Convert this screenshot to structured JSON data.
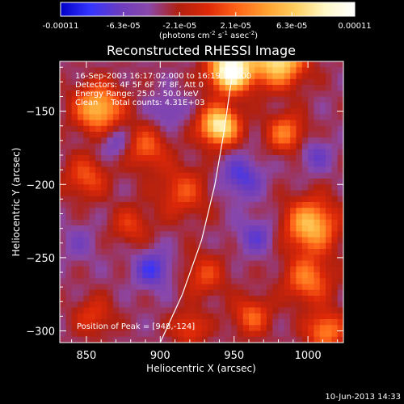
{
  "colorbar": {
    "tick_labels": [
      "-0.00011",
      "-6.3e-05",
      "-2.1e-05",
      "2.1e-05",
      "6.3e-05",
      "0.00011"
    ],
    "tick_values": [
      -0.00011,
      -6.3e-05,
      -2.1e-05,
      2.1e-05,
      6.3e-05,
      0.00011
    ],
    "range": [
      -0.00011,
      0.00011
    ],
    "unit_label_parts": [
      "(photons cm",
      "-2",
      " s",
      "-1",
      " asec",
      "-2",
      ")"
    ],
    "colormap": [
      "#0000c8",
      "#3434ff",
      "#6a3cc0",
      "#8a48aa",
      "#b02010",
      "#dd2808",
      "#ff6418",
      "#ffa030",
      "#ffd060",
      "#fff8c8",
      "#ffffff"
    ]
  },
  "chart_data": {
    "type": "heatmap",
    "title": "Reconstructed RHESSI Image",
    "xlabel": "Heliocentric X (arcsec)",
    "ylabel": "Heliocentric Y (arcsec)",
    "xlim": [
      832,
      1024
    ],
    "ylim": [
      -308,
      -116
    ],
    "x_ticks": [
      850,
      900,
      950,
      1000
    ],
    "y_ticks": [
      -300,
      -250,
      -200,
      -150
    ],
    "x_tick_labels": [
      "850",
      "900",
      "950",
      "1000"
    ],
    "y_tick_labels": [
      "−300",
      "−250",
      "−200",
      "−150"
    ],
    "annotations": [
      "16-Sep-2003 16:17:02.000 to 16:19:02.000",
      "Detectors: 4F 5F 6F 7F 8F, Att 0",
      "Energy Range: 25.0 - 50.0 keV",
      "Clean     Total counts: 4.31E+03"
    ],
    "peak_label": "Position of Peak = [948,-124]",
    "peak_position": [
      948,
      -124
    ],
    "limb_curve": [
      [
        900,
        -308
      ],
      [
        915,
        -275
      ],
      [
        928,
        -238
      ],
      [
        937,
        -200
      ],
      [
        943,
        -165
      ],
      [
        948,
        -130
      ],
      [
        951,
        -116
      ]
    ],
    "sources": [
      {
        "x": 948,
        "y": -122,
        "amp": 1.0,
        "sigma": 10
      },
      {
        "x": 940,
        "y": -160,
        "amp": 0.82,
        "sigma": 9
      },
      {
        "x": 980,
        "y": -115,
        "amp": 0.75,
        "sigma": 12
      },
      {
        "x": 858,
        "y": -148,
        "amp": 0.62,
        "sigma": 11
      },
      {
        "x": 1002,
        "y": -228,
        "amp": 0.62,
        "sigma": 12
      },
      {
        "x": 985,
        "y": -165,
        "amp": 0.42,
        "sigma": 9
      },
      {
        "x": 915,
        "y": -205,
        "amp": 0.3,
        "sigma": 12
      },
      {
        "x": 890,
        "y": -175,
        "amp": 0.35,
        "sigma": 10
      },
      {
        "x": 850,
        "y": -195,
        "amp": 0.32,
        "sigma": 10
      },
      {
        "x": 1000,
        "y": -265,
        "amp": 0.42,
        "sigma": 11
      },
      {
        "x": 930,
        "y": -262,
        "amp": 0.28,
        "sigma": 10
      },
      {
        "x": 880,
        "y": -228,
        "amp": 0.25,
        "sigma": 9
      },
      {
        "x": 962,
        "y": -290,
        "amp": 0.35,
        "sigma": 9
      },
      {
        "x": 920,
        "y": -298,
        "amp": 0.3,
        "sigma": 8
      },
      {
        "x": 855,
        "y": -290,
        "amp": 0.25,
        "sigma": 9
      },
      {
        "x": 1012,
        "y": -300,
        "amp": 0.45,
        "sigma": 9
      },
      {
        "x": 895,
        "y": -258,
        "amp": -0.3,
        "sigma": 9
      },
      {
        "x": 955,
        "y": -195,
        "amp": -0.28,
        "sigma": 10
      },
      {
        "x": 965,
        "y": -235,
        "amp": -0.22,
        "sigma": 9
      },
      {
        "x": 1005,
        "y": -180,
        "amp": -0.2,
        "sigma": 8
      },
      {
        "x": 870,
        "y": -172,
        "amp": -0.2,
        "sigma": 8
      },
      {
        "x": 905,
        "y": -150,
        "amp": -0.18,
        "sigma": 8
      },
      {
        "x": 845,
        "y": -240,
        "amp": -0.12,
        "sigma": 9
      }
    ],
    "baseline": 0.05,
    "grid": false
  },
  "footer": {
    "date": "10-Jun-2013 14:33"
  }
}
